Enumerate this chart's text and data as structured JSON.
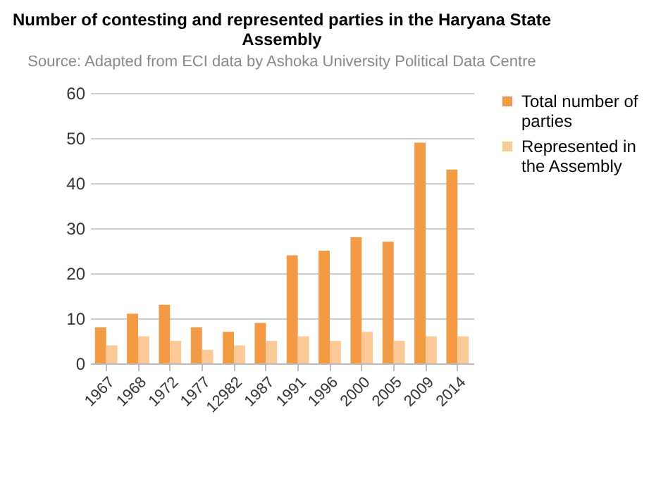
{
  "chart_data": {
    "type": "bar",
    "title": "Number of contesting and represented parties in the Haryana State Assembly",
    "subtitle": "Source: Adapted from ECI data by Ashoka University Political Data Centre",
    "categories": [
      "1967",
      "1968",
      "1972",
      "1977",
      "12982",
      "1987",
      "1991",
      "1996",
      "2000",
      "2005",
      "2009",
      "2014"
    ],
    "series": [
      {
        "name": "Total number of parties",
        "color": "#f39a45",
        "values": [
          8,
          11,
          13,
          8,
          7,
          9,
          24,
          25,
          28,
          27,
          49,
          43
        ]
      },
      {
        "name": "Represented in the Assembly",
        "color": "#fcc898",
        "values": [
          4,
          6,
          5,
          3,
          4,
          5,
          6,
          5,
          7,
          5,
          6,
          6
        ]
      }
    ],
    "ylim": [
      0,
      60
    ],
    "yticks": [
      0,
      10,
      20,
      30,
      40,
      50,
      60
    ],
    "grid": "y",
    "legend": "right"
  }
}
